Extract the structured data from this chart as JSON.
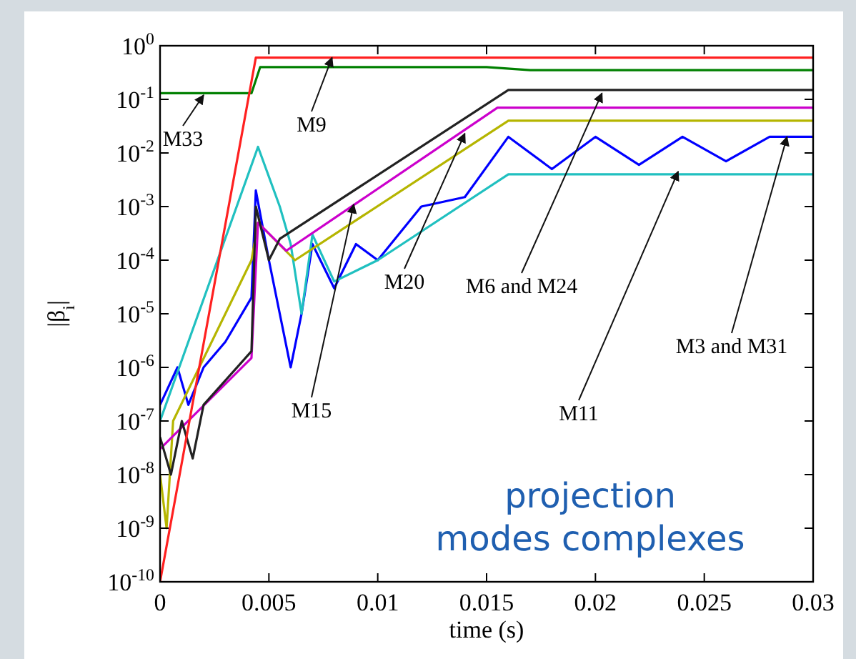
{
  "chart_data": {
    "type": "line",
    "xlabel": "time (s)",
    "ylabel": "|β$_{i}$|",
    "log": "y",
    "grid": false,
    "marker": "none",
    "line_style": "solid",
    "xlim": [
      0,
      0.03
    ],
    "xticks": [
      0,
      0.005,
      0.01,
      0.015,
      0.02,
      0.025,
      0.03
    ],
    "ylim": [
      1e-10,
      1
    ],
    "yticks": [
      {
        "value": 1,
        "label": "10$^{0}$"
      },
      {
        "value": 0.1,
        "label": "10$^{-1}$"
      },
      {
        "value": 0.01,
        "label": "10$^{-2}$"
      },
      {
        "value": 0.001,
        "label": "10$^{-3}$"
      },
      {
        "value": 0.0001,
        "label": "10$^{-4}$"
      },
      {
        "value": 1e-05,
        "label": "10$^{-5}$"
      },
      {
        "value": 1e-06,
        "label": "10$^{-6}$"
      },
      {
        "value": 1e-07,
        "label": "10$^{-7}$"
      },
      {
        "value": 1e-08,
        "label": "10$^{-8}$"
      },
      {
        "value": 1e-09,
        "label": "10$^{-9}$"
      },
      {
        "value": 1e-10,
        "label": "10$^{-10}$"
      }
    ],
    "series": [
      {
        "color": "#0000ff",
        "x": [
          0,
          0.0008,
          0.0013,
          0.002,
          0.003,
          0.0042,
          0.0044,
          0.005,
          0.0055,
          0.006,
          0.0065,
          0.007,
          0.008,
          0.009,
          0.01,
          0.012,
          0.014,
          0.016,
          0.018,
          0.02,
          0.022,
          0.024,
          0.026,
          0.028,
          0.03
        ],
        "values": [
          2e-07,
          1e-06,
          2e-07,
          1e-06,
          3e-06,
          2e-05,
          0.002,
          0.0001,
          1e-05,
          1e-06,
          1e-05,
          0.0002,
          3e-05,
          0.0002,
          0.0001,
          0.001,
          0.0015,
          0.02,
          0.005,
          0.02,
          0.006,
          0.02,
          0.007,
          0.02,
          0.02
        ]
      },
      {
        "color": "#20c0c0",
        "x": [
          0,
          0.0045,
          0.0055,
          0.006,
          0.0065,
          0.007,
          0.008,
          0.01,
          0.016,
          0.03
        ],
        "values": [
          1e-07,
          0.013,
          0.001,
          0.0002,
          1e-05,
          0.0003,
          4e-05,
          0.0001,
          0.004,
          0.004
        ]
      },
      {
        "color": "#b5b500",
        "x": [
          0,
          0.0003,
          0.0006,
          0.0042,
          0.0045,
          0.0062,
          0.016,
          0.03
        ],
        "values": [
          1e-08,
          1e-09,
          1e-07,
          0.0001,
          0.0005,
          0.0001,
          0.04,
          0.04
        ]
      },
      {
        "color": "#cc00cc",
        "x": [
          0,
          0.0042,
          0.0045,
          0.0058,
          0.0155,
          0.03
        ],
        "values": [
          3e-08,
          1.5e-06,
          0.0005,
          0.00015,
          0.07,
          0.07
        ]
      },
      {
        "color": "#222222",
        "x": [
          0,
          0.0005,
          0.001,
          0.0015,
          0.002,
          0.0042,
          0.0044,
          0.005,
          0.0055,
          0.016,
          0.03
        ],
        "values": [
          5e-08,
          1e-08,
          1e-07,
          2e-08,
          2e-07,
          2e-06,
          0.001,
          0.0001,
          0.00025,
          0.15,
          0.15
        ]
      },
      {
        "color": "#008000",
        "x": [
          0,
          0.0042,
          0.0046,
          0.015,
          0.017,
          0.03
        ],
        "values": [
          0.13,
          0.13,
          0.4,
          0.4,
          0.35,
          0.35
        ]
      },
      {
        "color": "#ff2020",
        "x": [
          0,
          0.0044,
          0.03
        ],
        "values": [
          1e-10,
          0.6,
          0.6
        ]
      }
    ],
    "annotations": [
      {
        "text": "M33",
        "x": 0.002,
        "y": 0.12
      },
      {
        "text": "M9",
        "x": 0.0079,
        "y": 0.6
      },
      {
        "text": "M20",
        "x": 0.014,
        "y": 0.023
      },
      {
        "text": "M6 and M24",
        "x": 0.0203,
        "y": 0.13
      },
      {
        "text": "M15",
        "x": 0.0089,
        "y": 0.0011
      },
      {
        "text": "M11",
        "x": 0.0238,
        "y": 0.0045
      },
      {
        "text": "M3 and M31",
        "x": 0.0288,
        "y": 0.02
      },
      "projection\nmodes complexes"
    ]
  }
}
